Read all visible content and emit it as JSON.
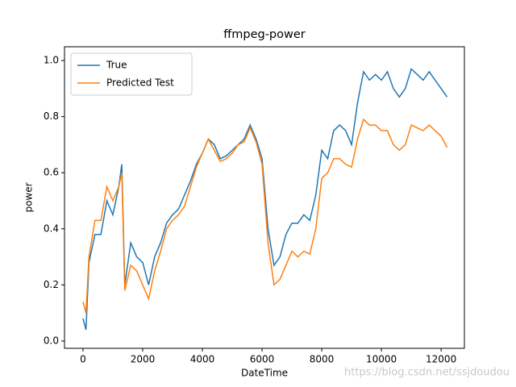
{
  "chart_data": {
    "type": "line",
    "title": "ffmpeg-power",
    "xlabel": "DateTime",
    "ylabel": "power",
    "watermark": "https://blog.csdn.net/ssjdoudou",
    "x": [
      0,
      100,
      200,
      400,
      600,
      800,
      1000,
      1200,
      1300,
      1400,
      1600,
      1800,
      2000,
      2200,
      2400,
      2600,
      2800,
      3000,
      3200,
      3400,
      3600,
      3800,
      4000,
      4200,
      4400,
      4600,
      4800,
      5000,
      5200,
      5400,
      5600,
      5800,
      6000,
      6200,
      6400,
      6600,
      6800,
      7000,
      7200,
      7400,
      7600,
      7800,
      8000,
      8200,
      8400,
      8600,
      8800,
      9000,
      9200,
      9400,
      9600,
      9800,
      10000,
      10200,
      10400,
      10600,
      10800,
      11000,
      11200,
      11400,
      11600,
      11800,
      12000,
      12200
    ],
    "series": [
      {
        "name": "True",
        "color": "#1f77b4",
        "values": [
          0.08,
          0.04,
          0.28,
          0.38,
          0.38,
          0.5,
          0.45,
          0.55,
          0.63,
          0.2,
          0.35,
          0.3,
          0.28,
          0.2,
          0.3,
          0.35,
          0.42,
          0.45,
          0.47,
          0.52,
          0.57,
          0.63,
          0.67,
          0.72,
          0.7,
          0.65,
          0.66,
          0.68,
          0.7,
          0.72,
          0.77,
          0.72,
          0.65,
          0.4,
          0.27,
          0.3,
          0.38,
          0.42,
          0.42,
          0.45,
          0.43,
          0.52,
          0.68,
          0.65,
          0.75,
          0.77,
          0.75,
          0.7,
          0.85,
          0.96,
          0.93,
          0.95,
          0.93,
          0.96,
          0.9,
          0.87,
          0.9,
          0.97,
          0.95,
          0.93,
          0.96,
          0.93,
          0.9,
          0.87
        ]
      },
      {
        "name": "Predicted Test",
        "color": "#ff7f0e",
        "values": [
          0.14,
          0.1,
          0.3,
          0.43,
          0.43,
          0.55,
          0.5,
          0.55,
          0.6,
          0.18,
          0.27,
          0.25,
          0.2,
          0.15,
          0.25,
          0.32,
          0.4,
          0.43,
          0.45,
          0.48,
          0.55,
          0.62,
          0.67,
          0.72,
          0.68,
          0.64,
          0.65,
          0.67,
          0.7,
          0.71,
          0.76,
          0.71,
          0.63,
          0.35,
          0.2,
          0.22,
          0.27,
          0.32,
          0.3,
          0.32,
          0.31,
          0.4,
          0.58,
          0.6,
          0.65,
          0.65,
          0.63,
          0.62,
          0.72,
          0.79,
          0.77,
          0.77,
          0.75,
          0.75,
          0.7,
          0.68,
          0.7,
          0.77,
          0.76,
          0.75,
          0.77,
          0.75,
          0.73,
          0.69
        ]
      }
    ],
    "xlim": [
      -620,
      12780
    ],
    "ylim": [
      -0.026,
      1.049
    ],
    "xticks": [
      0,
      2000,
      4000,
      6000,
      8000,
      10000,
      12000
    ],
    "yticks": [
      {
        "value": 0,
        "label": "0.0"
      },
      0.2,
      0.4,
      0.6,
      0.8,
      {
        "value": 1,
        "label": "1.0"
      }
    ],
    "legend": "upper left"
  }
}
